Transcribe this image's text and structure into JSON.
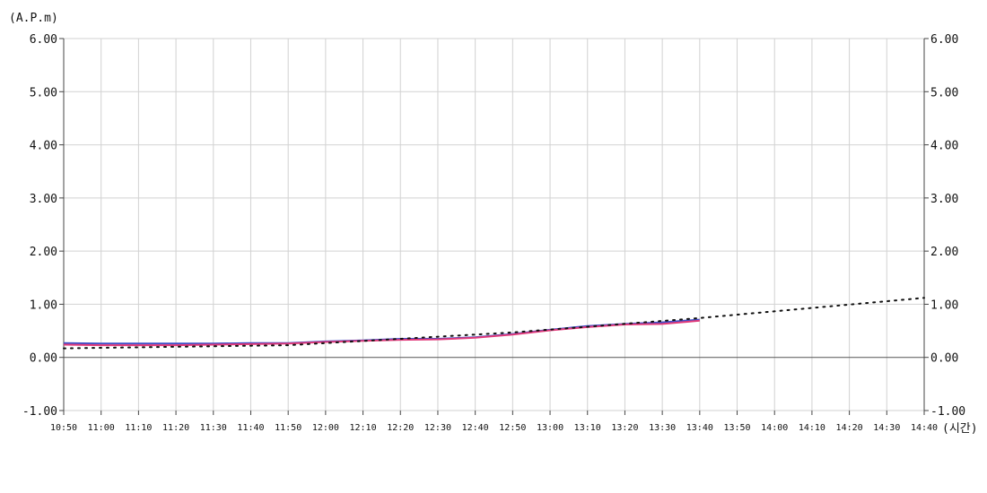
{
  "chart_data": {
    "type": "line",
    "y_unit_label": "(A.P.m)",
    "x_unit_label": "(시간)",
    "ylim": [
      -1.0,
      6.0
    ],
    "y_ticks": [
      "6.00",
      "5.00",
      "4.00",
      "3.00",
      "2.00",
      "1.00",
      "0.00",
      "-1.00"
    ],
    "y_tick_values": [
      6,
      5,
      4,
      3,
      2,
      1,
      0,
      -1
    ],
    "x_ticks": [
      "10:50",
      "11:00",
      "11:10",
      "11:20",
      "11:30",
      "11:40",
      "11:50",
      "12:00",
      "12:10",
      "12:20",
      "12:30",
      "12:40",
      "12:50",
      "13:00",
      "13:10",
      "13:20",
      "13:30",
      "13:40",
      "13:50",
      "14:00",
      "14:10",
      "14:20",
      "14:30",
      "14:40"
    ],
    "grid": true,
    "zero_line": true,
    "series": [
      {
        "color": "#3f4fc8",
        "style": "solid",
        "x": [
          "10:50",
          "11:00",
          "11:10",
          "11:20",
          "11:30",
          "11:40",
          "11:50",
          "12:00",
          "12:10",
          "12:20",
          "12:30",
          "12:40",
          "12:50",
          "13:00",
          "13:10",
          "13:20",
          "13:30",
          "13:40"
        ],
        "values": [
          0.27,
          0.26,
          0.26,
          0.26,
          0.26,
          0.27,
          0.27,
          0.3,
          0.32,
          0.35,
          0.35,
          0.38,
          0.44,
          0.52,
          0.59,
          0.63,
          0.66,
          0.71
        ]
      },
      {
        "color": "#e03a7a",
        "style": "solid",
        "x": [
          "10:50",
          "11:00",
          "11:10",
          "11:20",
          "11:30",
          "11:40",
          "11:50",
          "12:00",
          "12:10",
          "12:20",
          "12:30",
          "12:40",
          "12:50",
          "13:00",
          "13:10",
          "13:20",
          "13:30",
          "13:40"
        ],
        "values": [
          0.24,
          0.23,
          0.23,
          0.23,
          0.24,
          0.25,
          0.26,
          0.29,
          0.31,
          0.33,
          0.34,
          0.37,
          0.43,
          0.51,
          0.57,
          0.62,
          0.63,
          0.69
        ]
      },
      {
        "color": "#111111",
        "style": "dotted",
        "x": [
          "10:50",
          "11:50",
          "12:50",
          "13:40",
          "14:40"
        ],
        "values": [
          0.17,
          0.23,
          0.47,
          0.74,
          1.12
        ]
      }
    ]
  }
}
